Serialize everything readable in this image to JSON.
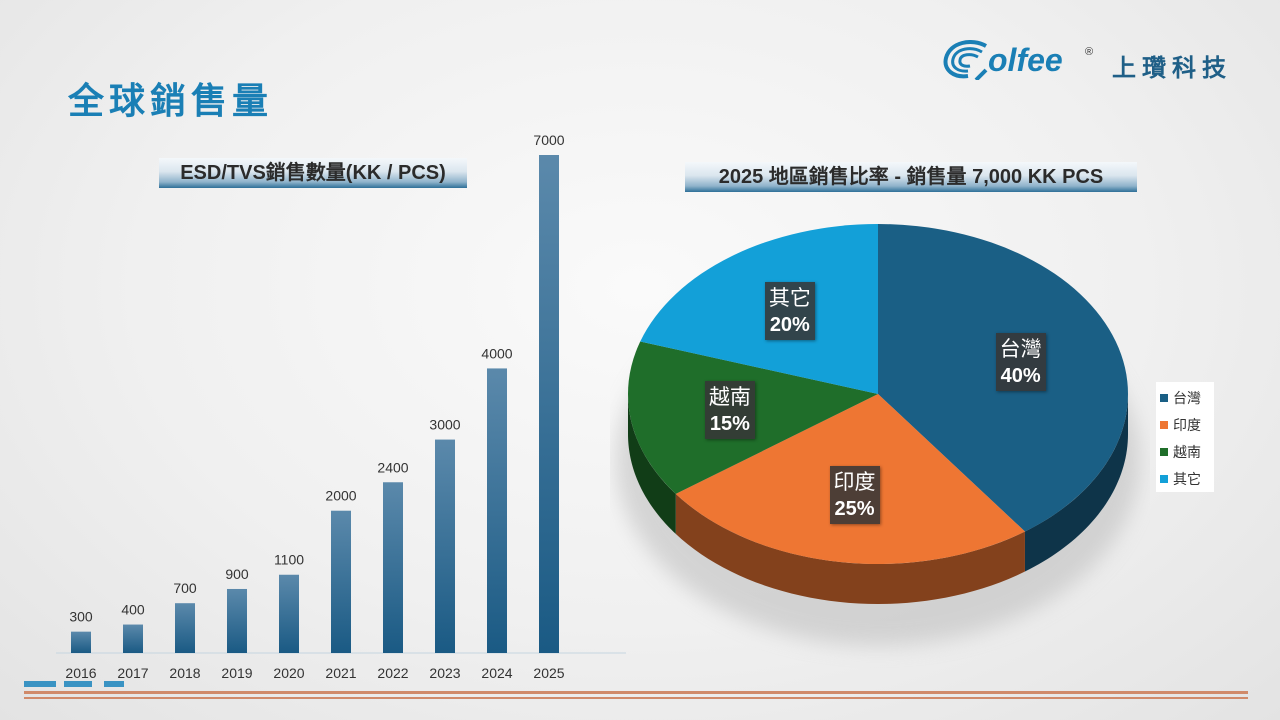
{
  "page_title": "全球銷售量",
  "logo": {
    "word": "olfee",
    "reg": "®",
    "chinese": "上瓚科技"
  },
  "chart_data": [
    {
      "type": "bar",
      "title": "ESD/TVS銷售數量(KK / PCS)",
      "categories": [
        "2016",
        "2017",
        "2018",
        "2019",
        "2020",
        "2021",
        "2022",
        "2023",
        "2024",
        "2025"
      ],
      "values": [
        300,
        400,
        700,
        900,
        1100,
        2000,
        2400,
        3000,
        4000,
        7000
      ],
      "ylim": [
        0,
        7000
      ],
      "grid": false,
      "color": "#1f5f87"
    },
    {
      "type": "pie",
      "title": "2025 地區銷售比率 - 銷售量 7,000 KK PCS",
      "legend_position": "right",
      "slices": [
        {
          "label": "台灣",
          "value": 40,
          "pct_label": "40%",
          "color": "#1a5f85"
        },
        {
          "label": "印度",
          "value": 25,
          "pct_label": "25%",
          "color": "#ee7633"
        },
        {
          "label": "越南",
          "value": 15,
          "pct_label": "15%",
          "color": "#1f6e2a"
        },
        {
          "label": "其它",
          "value": 20,
          "pct_label": "20%",
          "color": "#13a0d8"
        }
      ]
    }
  ]
}
